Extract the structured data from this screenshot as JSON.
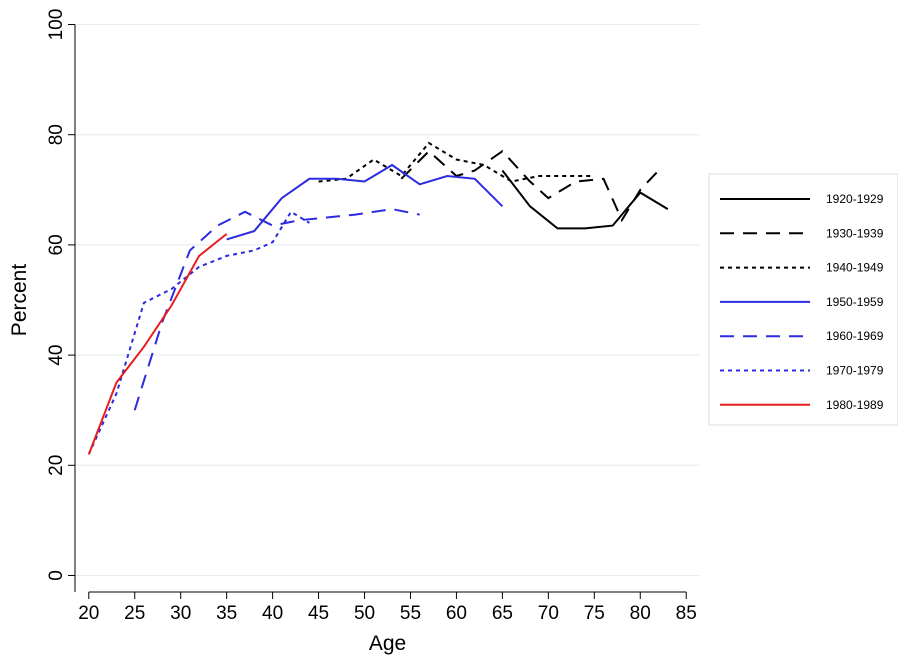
{
  "chart_data": {
    "type": "line",
    "title": "",
    "xlabel": "Age",
    "ylabel": "Percent",
    "xlim": [
      18.5,
      86.5
    ],
    "ylim": [
      -3,
      103
    ],
    "x_ticks": [
      20,
      25,
      30,
      35,
      40,
      45,
      50,
      55,
      60,
      65,
      70,
      75,
      80,
      85
    ],
    "y_ticks": [
      0,
      20,
      40,
      60,
      80,
      100
    ],
    "x_tick_labels": [
      "20",
      "25",
      "30",
      "35",
      "40",
      "45",
      "50",
      "55",
      "60",
      "65",
      "70",
      "75",
      "80",
      "85"
    ],
    "y_tick_labels": [
      "0",
      "20",
      "40",
      "60",
      "80",
      "100"
    ],
    "grid": "horizontal",
    "legend_position": "right",
    "series": [
      {
        "name": "1920-1929",
        "color": "#000000",
        "dash": "solid",
        "x": [
          65,
          68,
          71,
          74,
          77,
          80,
          83
        ],
        "y": [
          73.5,
          67,
          63,
          63,
          63.5,
          69.5,
          66.5
        ]
      },
      {
        "name": "1930-1939",
        "color": "#000000",
        "dash": "long",
        "x": [
          54,
          57,
          60,
          62,
          65,
          68,
          70,
          73,
          76,
          78,
          80,
          82
        ],
        "y": [
          72,
          77,
          72.5,
          73.5,
          77,
          71.5,
          68.5,
          71.5,
          72,
          64.5,
          70,
          73.5
        ]
      },
      {
        "name": "1940-1949",
        "color": "#000000",
        "dash": "short",
        "x": [
          45,
          48,
          51,
          54,
          57,
          60,
          63,
          66,
          69,
          72,
          75
        ],
        "y": [
          71.5,
          72,
          75.5,
          72.5,
          78.5,
          75.5,
          74.5,
          71.5,
          72.5,
          72.5,
          72.5
        ]
      },
      {
        "name": "1950-1959",
        "color": "#2b2be0",
        "dash": "solid",
        "x": [
          35,
          38,
          41,
          44,
          47,
          50,
          53,
          56,
          59,
          62,
          65
        ],
        "y": [
          61,
          62.5,
          68.5,
          72,
          72,
          71.5,
          74.5,
          71,
          72.5,
          72,
          67
        ]
      },
      {
        "name": "1960-1969",
        "color": "#2b2be0",
        "dash": "long",
        "x": [
          25,
          28,
          31,
          34,
          37,
          40,
          43,
          46,
          49,
          53,
          56
        ],
        "y": [
          30,
          46,
          59,
          63.5,
          66,
          63.5,
          64.5,
          65,
          65.5,
          66.5,
          65.5
        ]
      },
      {
        "name": "1970-1979",
        "color": "#2b2be0",
        "dash": "short",
        "x": [
          20,
          23,
          26,
          29,
          32,
          35,
          38,
          40,
          42,
          44
        ],
        "y": [
          22,
          33,
          49.5,
          52,
          56,
          58,
          59,
          60.5,
          66,
          64
        ]
      },
      {
        "name": "1980-1989",
        "color": "#e81e1e",
        "dash": "solid",
        "x": [
          20,
          23,
          26,
          29,
          32,
          35
        ],
        "y": [
          22,
          35,
          41.5,
          49,
          58,
          62
        ]
      }
    ]
  }
}
